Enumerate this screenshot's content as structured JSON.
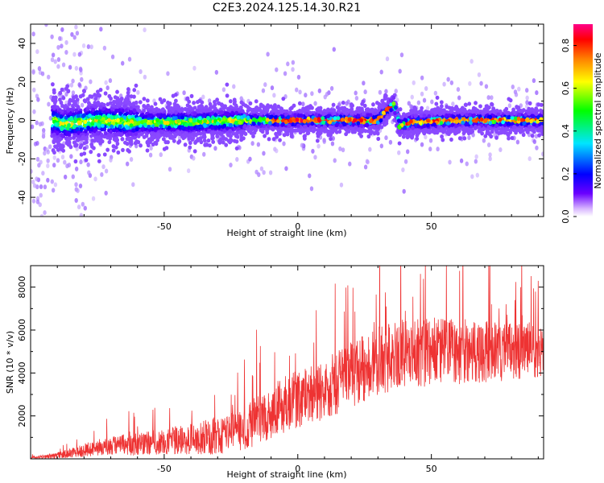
{
  "figure": {
    "title": "C2E3.2024.125.14.30.R21"
  },
  "chart_data": [
    {
      "type": "heatmap",
      "name": "doppler-spectrum",
      "xlabel": "Height of straight line (km)",
      "ylabel": "Frequency (Hz)",
      "xlim": [
        -100,
        92
      ],
      "ylim": [
        -50,
        50
      ],
      "xticks": [
        -50,
        0,
        50
      ],
      "yticks": [
        -40,
        -20,
        0,
        20,
        40
      ],
      "grid": false,
      "colorbar": {
        "label": "Normalized spectral amplitude",
        "range": [
          0.0,
          0.9
        ],
        "ticks": [
          0.0,
          0.2,
          0.4,
          0.6,
          0.8
        ],
        "colormap": [
          "#ffffff",
          "#5a00ff",
          "#0000ff",
          "#00ffff",
          "#00ff00",
          "#ffff00",
          "#ff8000",
          "#ff0000",
          "#ff0080"
        ]
      },
      "ridge": {
        "description_points_x": [
          -100,
          -88,
          -75,
          -60,
          -40,
          -20,
          0,
          15,
          30,
          34,
          36,
          38,
          42,
          60,
          92
        ],
        "frequency_hz": [
          4,
          -2,
          0,
          -1,
          -1,
          0,
          0,
          0,
          0,
          6,
          9,
          -3,
          -1,
          0,
          0
        ]
      }
    },
    {
      "type": "line",
      "name": "snr",
      "xlabel": "Height of straight line (km)",
      "ylabel": "SNR (10 * v/v)",
      "xlim": [
        -100,
        92
      ],
      "ylim": [
        0,
        9000
      ],
      "xticks": [
        -50,
        0,
        50
      ],
      "yticks": [
        2000,
        4000,
        6000,
        8000
      ],
      "grid": false,
      "series": [
        {
          "color": "#ee3333",
          "envelope": {
            "x": [
              -100,
              -90,
              -80,
              -70,
              -60,
              -50,
              -40,
              -30,
              -20,
              -10,
              0,
              10,
              20,
              30,
              40,
              50,
              60,
              70,
              80,
              92
            ],
            "mean": [
              50,
              150,
              400,
              600,
              700,
              800,
              900,
              1100,
              1400,
              2200,
              2800,
              3200,
              3900,
              4600,
              4900,
              5000,
              5000,
              5000,
              5000,
              5100
            ],
            "spread": [
              60,
              150,
              350,
              500,
              600,
              700,
              800,
              1000,
              1200,
              1400,
              1500,
              1600,
              1700,
              1800,
              1800,
              1800,
              1700,
              1600,
              1500,
              1500
            ]
          }
        }
      ]
    }
  ]
}
